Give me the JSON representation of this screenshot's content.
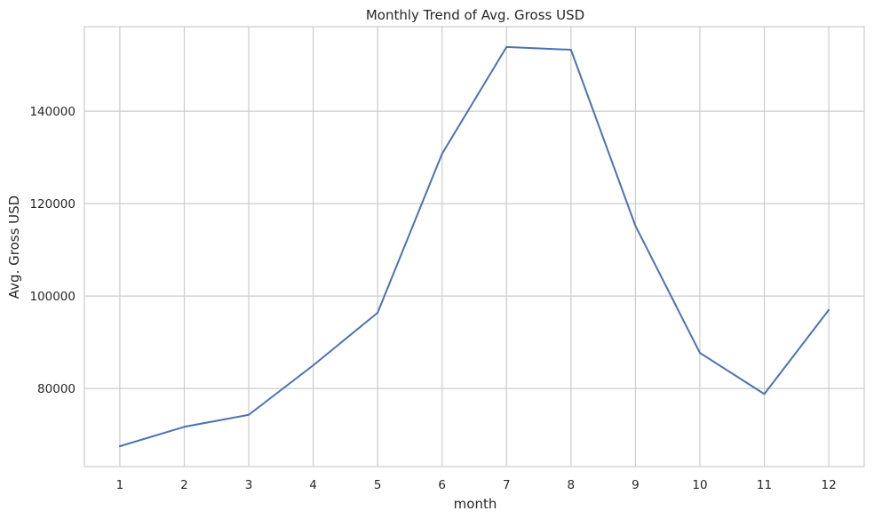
{
  "chart_data": {
    "type": "line",
    "title": "Monthly Trend of Avg. Gross USD",
    "xlabel": "month",
    "ylabel": "Avg. Gross USD",
    "x": [
      1,
      2,
      3,
      4,
      5,
      6,
      7,
      8,
      9,
      10,
      11,
      12
    ],
    "series": [
      {
        "name": "",
        "values": [
          67500,
          71700,
          74300,
          85000,
          96400,
          130800,
          153900,
          153300,
          115200,
          87700,
          78800,
          97000
        ]
      }
    ],
    "x_ticks": [
      1,
      2,
      3,
      4,
      5,
      6,
      7,
      8,
      9,
      10,
      11,
      12
    ],
    "y_ticks": [
      80000,
      100000,
      120000,
      140000
    ],
    "xlim": [
      0.45,
      12.55
    ],
    "ylim": [
      63100,
      158300
    ],
    "grid": true,
    "legend": "none",
    "colors": {
      "line": "#4c72b0",
      "grid": "#cccccc",
      "spine": "#cccccc",
      "text": "#262626",
      "background": "#ffffff"
    }
  }
}
